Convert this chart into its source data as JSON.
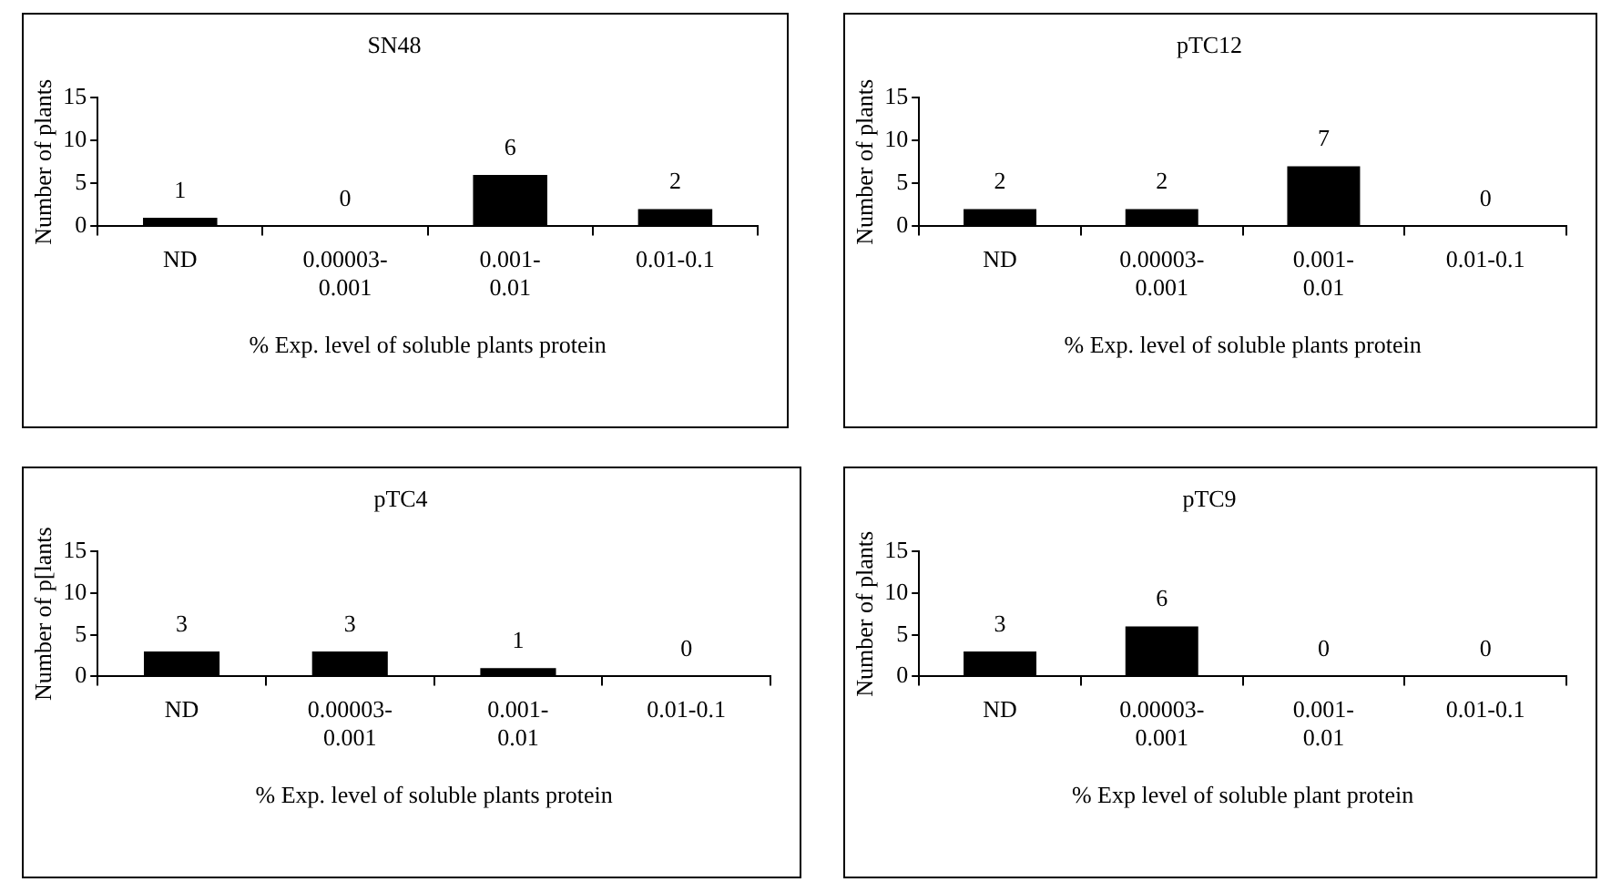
{
  "chart_data": [
    {
      "type": "bar",
      "title": "SN48",
      "xlabel": "% Exp. level of soluble plants protein",
      "ylabel": "Number of plants",
      "categories": [
        "ND",
        "0.00003-0.001",
        "0.001-0.01",
        "0.01-0.1"
      ],
      "values": [
        1,
        0,
        6,
        2
      ],
      "color": "#000000",
      "ylim": [
        0,
        15
      ],
      "yticks": [
        0,
        5,
        10,
        15
      ],
      "grid": false,
      "data_labels": true
    },
    {
      "type": "bar",
      "title": "pTC12",
      "xlabel": "% Exp. level of soluble plants protein",
      "ylabel": "Number of plants",
      "categories": [
        "ND",
        "0.00003-0.001",
        "0.001-0.01",
        "0.01-0.1"
      ],
      "values": [
        2,
        2,
        7,
        0
      ],
      "color": "#000000",
      "ylim": [
        0,
        15
      ],
      "yticks": [
        0,
        5,
        10,
        15
      ],
      "grid": false,
      "data_labels": true
    },
    {
      "type": "bar",
      "title": "pTC4",
      "xlabel": "% Exp. level of soluble plants protein",
      "ylabel": "Number of p[lants",
      "categories": [
        "ND",
        "0.00003-0.001",
        "0.001-0.01",
        "0.01-0.1"
      ],
      "values": [
        3,
        3,
        1,
        0
      ],
      "color": "#000000",
      "ylim": [
        0,
        15
      ],
      "yticks": [
        0,
        5,
        10,
        15
      ],
      "grid": false,
      "data_labels": true
    },
    {
      "type": "bar",
      "title": "pTC9",
      "xlabel": "% Exp level of soluble plant protein",
      "ylabel": "Number of plants",
      "categories": [
        "ND",
        "0.00003-0.001",
        "0.001-0.01",
        "0.01-0.1"
      ],
      "values": [
        3,
        6,
        0,
        0
      ],
      "color": "#000000",
      "ylim": [
        0,
        15
      ],
      "yticks": [
        0,
        5,
        10,
        15
      ],
      "grid": false,
      "data_labels": true
    }
  ]
}
